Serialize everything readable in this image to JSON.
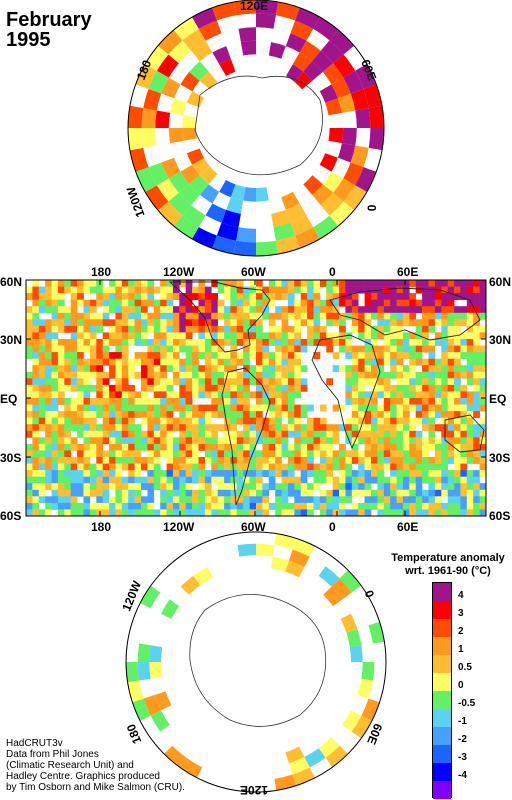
{
  "title": {
    "month": "February",
    "year": "1995"
  },
  "north_polar": {
    "lon_labels": [
      "120E",
      "60E",
      "0",
      "120W",
      "180"
    ]
  },
  "main_map": {
    "top_lon_labels": [
      "180",
      "120W",
      "60W",
      "0",
      "60E"
    ],
    "bottom_lon_labels": [
      "180",
      "120W",
      "60W",
      "0",
      "60E"
    ],
    "left_lat_labels": [
      "60N",
      "30N",
      "EQ",
      "30S",
      "60S"
    ],
    "right_lat_labels": [
      "60N",
      "30N",
      "EQ",
      "30S",
      "60S"
    ]
  },
  "south_polar": {
    "lon_labels": [
      "120W",
      "0",
      "60E",
      "120E",
      "180"
    ]
  },
  "legend": {
    "title_line1": "Temperature anomaly",
    "title_line2": "wrt. 1961-90  (°C)",
    "levels": [
      {
        "label": "4",
        "color": "#a0148c"
      },
      {
        "label": "3",
        "color": "#ff0000"
      },
      {
        "label": "2",
        "color": "#ff4c00"
      },
      {
        "label": "1",
        "color": "#ff9a1e"
      },
      {
        "label": "0.5",
        "color": "#ffbe32"
      },
      {
        "label": "0",
        "color": "#ffff64"
      },
      {
        "label": "-0.5",
        "color": "#64f064"
      },
      {
        "label": "-1",
        "color": "#5ad2f0"
      },
      {
        "label": "-2",
        "color": "#46a0ff"
      },
      {
        "label": "-3",
        "color": "#1e64ff"
      },
      {
        "label": "-4",
        "color": "#0000ff"
      },
      {
        "label": "",
        "color": "#8000ff"
      }
    ]
  },
  "credit": {
    "line1": "HadCRUT3v",
    "line2": "Data from Phil Jones",
    "line3": "(Climatic Research Unit) and",
    "line4": "Hadley Centre.  Graphics produced",
    "line5": "by Tim Osborn and Mike Salmon (CRU)."
  }
}
